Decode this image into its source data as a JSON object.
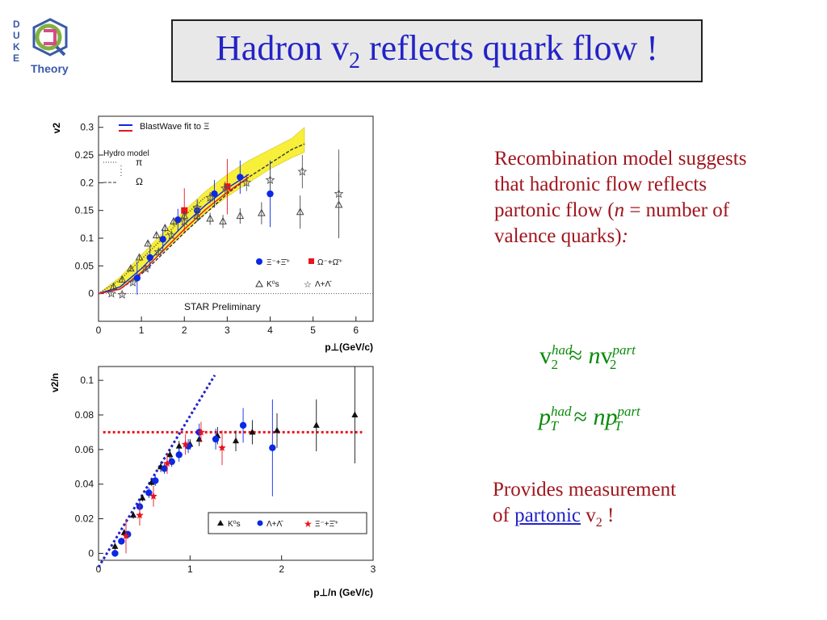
{
  "logo": {
    "letters": [
      "D",
      "U",
      "K",
      "E"
    ],
    "text": "Theory"
  },
  "title": {
    "main": "Hadron v",
    "sub": "2",
    "rest": " reflects quark flow !"
  },
  "paragraph1": {
    "before_n": "Recombination model suggests that hadronic flow reflects partonic flow (",
    "n": "n",
    "after_n": " = number of valence quarks)",
    "colon": ":"
  },
  "formula1": {
    "lhs": "v",
    "lhs_sup": "had",
    "lhs_sub": "2",
    "approx": "≈",
    "n": "n",
    "rhs": "v",
    "rhs_sup": "part",
    "rhs_sub": "2"
  },
  "formula2": {
    "lhs": "p",
    "lhs_sup": "had",
    "lhs_sub": "T",
    "approx": "≈",
    "n": "np",
    "rhs_sup": "part",
    "rhs_sub": "T"
  },
  "paragraph2": {
    "line1": "Provides measurement",
    "of": "of ",
    "link": "partonic",
    "v": " v",
    "v_sub": "2",
    "end": " !"
  },
  "chart_data": [
    {
      "type": "scatter",
      "ylabel": "v2",
      "xlabel": "p⊥(GeV/c)",
      "xlim": [
        0,
        6.4
      ],
      "ylim": [
        -0.05,
        0.32
      ],
      "xticks": [
        "0",
        "1",
        "2",
        "3",
        "4",
        "5",
        "6"
      ],
      "yticks": [
        "0",
        "0.05",
        "0.1",
        "0.15",
        "0.2",
        "0.25",
        "0.3"
      ],
      "annotation_star": "STAR Preliminary",
      "legend_top": {
        "blastwave": "BlastWave fit to Ξ",
        "hydro_title": "Hydro model",
        "hydro_pi": "π",
        "hydro_omega": "Ω"
      },
      "legend_bottom": {
        "xi": "Ξ⁻+Ξ̄⁺",
        "omega": "Ω⁻+Ω̄⁺",
        "k0s": "K⁰s",
        "lambda": "Λ+Λ̄"
      },
      "colors": {
        "band": "#f7ef3a",
        "blue": "#0a28e6",
        "red": "#e8141e",
        "gray": "#555555"
      },
      "series": [
        {
          "name": "Ξ⁻+Ξ̄⁺",
          "marker": "circle",
          "color": "#0a28e6",
          "points": [
            [
              0.9,
              0.028
            ],
            [
              1.2,
              0.065
            ],
            [
              1.5,
              0.098
            ],
            [
              1.85,
              0.133
            ],
            [
              2.3,
              0.15
            ],
            [
              2.7,
              0.18
            ],
            [
              3.3,
              0.21
            ],
            [
              4.0,
              0.18
            ]
          ],
          "err": [
            0.03,
            0.02,
            0.02,
            0.02,
            0.02,
            0.025,
            0.03,
            0.06
          ]
        },
        {
          "name": "Ω⁻+Ω̄⁺",
          "marker": "square",
          "color": "#e8141e",
          "points": [
            [
              2.0,
              0.15
            ],
            [
              3.0,
              0.193
            ]
          ],
          "err": [
            0.04,
            0.05
          ]
        },
        {
          "name": "K⁰s",
          "marker": "triangle",
          "color": "#444444",
          "points": [
            [
              0.35,
              0.012
            ],
            [
              0.55,
              0.025
            ],
            [
              0.75,
              0.045
            ],
            [
              0.95,
              0.065
            ],
            [
              1.15,
              0.09
            ],
            [
              1.35,
              0.105
            ],
            [
              1.55,
              0.118
            ],
            [
              1.75,
              0.13
            ],
            [
              2.0,
              0.14
            ],
            [
              2.3,
              0.14
            ],
            [
              2.6,
              0.135
            ],
            [
              2.9,
              0.13
            ],
            [
              3.3,
              0.14
            ],
            [
              3.8,
              0.145
            ],
            [
              4.7,
              0.147
            ],
            [
              5.6,
              0.16
            ]
          ],
          "err": [
            0.004,
            0.004,
            0.004,
            0.004,
            0.005,
            0.006,
            0.007,
            0.008,
            0.009,
            0.01,
            0.011,
            0.012,
            0.014,
            0.02,
            0.03,
            0.06
          ]
        },
        {
          "name": "Λ+Λ̄",
          "marker": "star",
          "color": "#555555",
          "points": [
            [
              0.3,
              0.0
            ],
            [
              0.55,
              -0.002
            ],
            [
              0.8,
              0.02
            ],
            [
              1.1,
              0.045
            ],
            [
              1.4,
              0.075
            ],
            [
              1.7,
              0.105
            ],
            [
              2.0,
              0.13
            ],
            [
              2.3,
              0.155
            ],
            [
              2.6,
              0.173
            ],
            [
              2.95,
              0.19
            ],
            [
              3.45,
              0.2
            ],
            [
              4.0,
              0.205
            ],
            [
              4.75,
              0.22
            ],
            [
              5.6,
              0.18
            ]
          ],
          "err": [
            0.004,
            0.004,
            0.004,
            0.005,
            0.005,
            0.006,
            0.007,
            0.008,
            0.01,
            0.012,
            0.015,
            0.02,
            0.03,
            0.08
          ]
        }
      ],
      "band": {
        "upper": [
          [
            0.0,
            0.0
          ],
          [
            0.5,
            0.03
          ],
          [
            1.0,
            0.07
          ],
          [
            1.5,
            0.11
          ],
          [
            2.0,
            0.15
          ],
          [
            2.5,
            0.185
          ],
          [
            3.0,
            0.215
          ],
          [
            3.5,
            0.24
          ],
          [
            4.0,
            0.26
          ],
          [
            4.5,
            0.28
          ],
          [
            4.8,
            0.3
          ]
        ],
        "lower": [
          [
            0.0,
            0.0
          ],
          [
            0.5,
            0.01
          ],
          [
            1.0,
            0.04
          ],
          [
            1.5,
            0.075
          ],
          [
            2.0,
            0.11
          ],
          [
            2.5,
            0.145
          ],
          [
            3.0,
            0.175
          ],
          [
            3.5,
            0.2
          ],
          [
            4.0,
            0.225
          ],
          [
            4.5,
            0.245
          ],
          [
            4.8,
            0.255
          ]
        ]
      },
      "hydro_pi": [
        [
          0.0,
          0.0
        ],
        [
          0.5,
          0.025
        ],
        [
          1.0,
          0.062
        ],
        [
          1.5,
          0.1
        ],
        [
          2.0,
          0.14
        ],
        [
          2.5,
          0.175
        ]
      ],
      "hydro_omega": [
        [
          0.0,
          0.0
        ],
        [
          0.5,
          0.008
        ],
        [
          1.0,
          0.035
        ],
        [
          1.5,
          0.072
        ],
        [
          2.0,
          0.11
        ],
        [
          2.5,
          0.145
        ],
        [
          3.0,
          0.18
        ],
        [
          3.5,
          0.21
        ],
        [
          4.0,
          0.235
        ],
        [
          4.5,
          0.26
        ],
        [
          4.8,
          0.27
        ]
      ],
      "blastwave_blue": [
        [
          0.0,
          0.0
        ],
        [
          0.5,
          0.012
        ],
        [
          1.0,
          0.045
        ],
        [
          1.5,
          0.085
        ],
        [
          2.0,
          0.125
        ],
        [
          2.5,
          0.16
        ],
        [
          3.0,
          0.19
        ],
        [
          3.5,
          0.215
        ]
      ],
      "blastwave_red": [
        [
          0.0,
          0.0
        ],
        [
          0.5,
          0.008
        ],
        [
          1.0,
          0.038
        ],
        [
          1.5,
          0.077
        ],
        [
          2.0,
          0.116
        ],
        [
          2.5,
          0.152
        ],
        [
          3.0,
          0.183
        ],
        [
          3.5,
          0.21
        ]
      ]
    },
    {
      "type": "scatter",
      "ylabel": "v2/n",
      "xlabel": "p⊥/n (GeV/c)",
      "xlim": [
        0,
        3
      ],
      "ylim": [
        -0.004,
        0.108
      ],
      "xticks": [
        "0",
        "1",
        "2",
        "3"
      ],
      "yticks": [
        "0",
        "0.02",
        "0.04",
        "0.06",
        "0.08",
        "0.1"
      ],
      "legend": {
        "k0s": "K⁰s",
        "lambda": "Λ+Λ̄",
        "xi": "Ξ⁻+Ξ̄⁺"
      },
      "series": [
        {
          "name": "K⁰s",
          "marker": "triangle",
          "color": "#111111",
          "points": [
            [
              0.18,
              0.004
            ],
            [
              0.28,
              0.012
            ],
            [
              0.38,
              0.022
            ],
            [
              0.48,
              0.032
            ],
            [
              0.58,
              0.041
            ],
            [
              0.68,
              0.05
            ],
            [
              0.78,
              0.057
            ],
            [
              0.88,
              0.062
            ],
            [
              1.0,
              0.063
            ],
            [
              1.1,
              0.066
            ],
            [
              1.3,
              0.068
            ],
            [
              1.5,
              0.065
            ],
            [
              1.68,
              0.07
            ],
            [
              1.95,
              0.071
            ],
            [
              2.38,
              0.074
            ],
            [
              2.8,
              0.08
            ]
          ],
          "err": [
            0.002,
            0.002,
            0.002,
            0.002,
            0.002,
            0.003,
            0.003,
            0.003,
            0.003,
            0.004,
            0.005,
            0.006,
            0.007,
            0.01,
            0.015,
            0.028
          ]
        },
        {
          "name": "Λ+Λ̄",
          "marker": "circle",
          "color": "#0a28e6",
          "points": [
            [
              0.18,
              0.0
            ],
            [
              0.25,
              0.007
            ],
            [
              0.32,
              0.011
            ],
            [
              0.45,
              0.027
            ],
            [
              0.55,
              0.035
            ],
            [
              0.62,
              0.042
            ],
            [
              0.72,
              0.049
            ],
            [
              0.8,
              0.053
            ],
            [
              0.88,
              0.057
            ],
            [
              0.98,
              0.062
            ],
            [
              1.1,
              0.07
            ],
            [
              1.28,
              0.066
            ],
            [
              1.58,
              0.074
            ],
            [
              1.9,
              0.061
            ]
          ],
          "err": [
            0.002,
            0.002,
            0.002,
            0.003,
            0.003,
            0.003,
            0.003,
            0.003,
            0.004,
            0.004,
            0.005,
            0.006,
            0.01,
            0.028
          ]
        },
        {
          "name": "Ξ⁻+Ξ̄⁺",
          "marker": "star",
          "color": "#e8141e",
          "points": [
            [
              0.3,
              0.01
            ],
            [
              0.45,
              0.022
            ],
            [
              0.6,
              0.033
            ],
            [
              0.75,
              0.052
            ],
            [
              0.95,
              0.063
            ],
            [
              1.12,
              0.07
            ],
            [
              1.35,
              0.061
            ]
          ],
          "err": [
            0.01,
            0.006,
            0.006,
            0.006,
            0.006,
            0.006,
            0.01
          ]
        }
      ],
      "fit_line": [
        [
          0.0,
          -0.008
        ],
        [
          1.27,
          0.103
        ]
      ],
      "plateau": [
        [
          0.05,
          0.07
        ],
        [
          2.88,
          0.07
        ]
      ],
      "colors": {
        "fit": "#2323c8",
        "plateau": "#e8141e"
      }
    }
  ]
}
